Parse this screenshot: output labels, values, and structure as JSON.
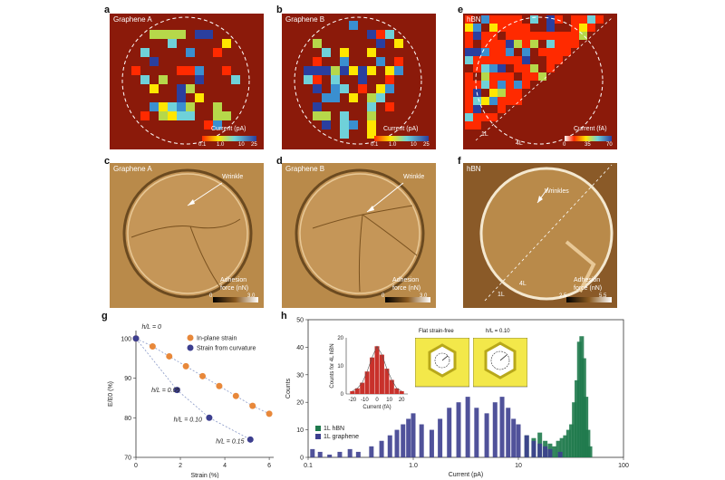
{
  "panels": {
    "a": {
      "letter": "a",
      "title": "Graphene A",
      "cbar_label": "Current (pA)",
      "cbar_ticks": [
        "0.1",
        "1.0",
        "10",
        "25"
      ]
    },
    "b": {
      "letter": "b",
      "title": "Graphene B",
      "cbar_label": "Current (pA)",
      "cbar_ticks": [
        "0.1",
        "1.0",
        "10",
        "25"
      ]
    },
    "e": {
      "letter": "e",
      "title": "hBN",
      "cbar_label": "Current (fA)",
      "cbar_ticks": [
        "0",
        "35",
        "70"
      ],
      "layer_1": "1L",
      "layer_4": "4L"
    },
    "c": {
      "letter": "c",
      "title": "Graphene A",
      "arrow_label": "Wrinkle",
      "cbar_label_1": "Adhesion",
      "cbar_label_2": "force (nN)",
      "cbar_ticks": [
        "0",
        "3.0"
      ]
    },
    "d": {
      "letter": "d",
      "title": "Graphene B",
      "arrow_label": "Wrinkle",
      "cbar_label_1": "Adhesion",
      "cbar_label_2": "force (nN)",
      "cbar_ticks": [
        "0",
        "3.0"
      ]
    },
    "f": {
      "letter": "f",
      "title": "hBN",
      "arrow_label": "Wrinkles",
      "cbar_label_1": "Adhesion",
      "cbar_label_2": "force (nN)",
      "cbar_ticks": [
        "2.5",
        "5.5"
      ],
      "layer_1": "1L",
      "layer_4": "4L"
    }
  },
  "colors": {
    "map_bg": "#8b1a0a",
    "afm_bg": "#b98a4a",
    "orange": "#e8883a",
    "navy": "#3d3f8f",
    "green": "#1f7a4d",
    "red": "#c8312b"
  },
  "chart_data": [
    {
      "panel": "g",
      "type": "scatter",
      "xlabel": "Strain (%)",
      "ylabel": "E/E0 (%)",
      "xlim": [
        0,
        6.2
      ],
      "ylim": [
        70,
        102
      ],
      "xticks": [
        "0",
        "2",
        "4",
        "6"
      ],
      "yticks": [
        "70",
        "80",
        "90",
        "100"
      ],
      "annotation_top": "h/L = 0",
      "series": [
        {
          "name": "In-plane strain",
          "color": "#e8883a",
          "x": [
            0,
            0.75,
            1.5,
            2.25,
            3.0,
            3.75,
            4.5,
            5.25,
            6.0
          ],
          "y": [
            100,
            98,
            95.5,
            93,
            90.5,
            88,
            85.5,
            83,
            81
          ]
        },
        {
          "name": "Strain from curvature",
          "color": "#3d3f8f",
          "x": [
            0,
            1.85,
            3.3,
            5.15
          ],
          "y": [
            100,
            87,
            80,
            74.5
          ]
        }
      ],
      "point_labels": [
        {
          "text": "h/L = 0.05",
          "x": 0.7,
          "y": 86.5
        },
        {
          "text": "h/L = 0.10",
          "x": 1.7,
          "y": 79
        },
        {
          "text": "h/L = 0.15",
          "x": 3.6,
          "y": 73.5
        }
      ]
    },
    {
      "panel": "h",
      "type": "bar",
      "xlabel": "Current (pA)",
      "ylabel": "Counts",
      "xscale": "log",
      "xlim": [
        0.1,
        100
      ],
      "ylim": [
        0,
        50
      ],
      "xticks": [
        "0.1",
        "1.0",
        "10",
        "100"
      ],
      "yticks": [
        "0",
        "10",
        "20",
        "30",
        "40",
        "50"
      ],
      "series": [
        {
          "name": "1L hBN",
          "color": "#1f7a4d",
          "x": [
            12,
            14,
            16,
            18,
            20,
            22,
            24,
            26,
            28,
            30,
            32,
            34,
            36,
            38,
            40,
            42,
            44,
            46,
            48
          ],
          "y": [
            8,
            7,
            9,
            6,
            5,
            4,
            6,
            7,
            8,
            10,
            12,
            20,
            28,
            42,
            44,
            36,
            22,
            10,
            4
          ]
        },
        {
          "name": "1L graphene",
          "color": "#3d3f8f",
          "x": [
            0.11,
            0.13,
            0.16,
            0.2,
            0.25,
            0.3,
            0.4,
            0.5,
            0.6,
            0.7,
            0.8,
            0.9,
            1.0,
            1.2,
            1.5,
            1.8,
            2.2,
            2.7,
            3.3,
            4,
            5,
            6,
            7,
            8,
            9,
            10,
            12,
            14,
            16,
            18,
            20,
            25
          ],
          "y": [
            3,
            2,
            1,
            2,
            3,
            2,
            4,
            6,
            8,
            10,
            12,
            14,
            16,
            12,
            10,
            14,
            18,
            20,
            22,
            18,
            16,
            20,
            22,
            18,
            14,
            12,
            8,
            6,
            5,
            4,
            3,
            2
          ]
        }
      ]
    },
    {
      "panel": "h-inset",
      "type": "bar",
      "xlabel": "Current (fA)",
      "ylabel": "Counts for 4L hBN",
      "xlim": [
        -25,
        25
      ],
      "ylim": [
        0,
        20
      ],
      "xticks": [
        "-20",
        "-10",
        "0",
        "10",
        "20"
      ],
      "yticks": [
        "0",
        "10",
        "20"
      ],
      "color": "#c8312b",
      "categories": [
        -20,
        -16,
        -12,
        -8,
        -4,
        0,
        4,
        8,
        12,
        16,
        20
      ],
      "values": [
        1,
        2,
        4,
        8,
        13,
        17,
        14,
        9,
        5,
        2,
        1
      ]
    }
  ],
  "h_inset_models": {
    "left_title": "Flat strain-free",
    "right_title": "h/L = 0.10"
  },
  "g_label": "g",
  "h_label": "h"
}
